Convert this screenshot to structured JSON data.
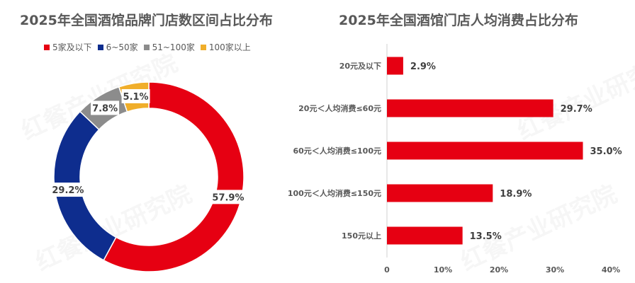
{
  "watermark": "红餐产业研究院",
  "chart_data": [
    {
      "type": "pie",
      "donut": true,
      "title": "2025年全国酒馆品牌门店数区间占比分布",
      "legend_position": "top",
      "categories": [
        "5家及以下",
        "6~50家",
        "51~100家",
        "100家以上"
      ],
      "values": [
        57.9,
        29.2,
        7.8,
        5.1
      ],
      "labels": [
        "57.9%",
        "29.2%",
        "7.8%",
        "5.1%"
      ],
      "colors": [
        "#e60012",
        "#0e2d8e",
        "#8c8c8c",
        "#f0ae2a"
      ]
    },
    {
      "type": "bar",
      "orientation": "horizontal",
      "title": "2025年全国酒馆门店人均消费占比分布",
      "categories": [
        "20元及以下",
        "20元＜人均消费≤60元",
        "60元＜人均消费≤100元",
        "100元＜人均消费≤150元",
        "150元以上"
      ],
      "values": [
        2.9,
        29.7,
        35.0,
        18.9,
        13.5
      ],
      "labels": [
        "2.9%",
        "29.7%",
        "35.0%",
        "18.9%",
        "13.5%"
      ],
      "xlim": [
        0,
        40
      ],
      "xticks": [
        "0",
        "10%",
        "20%",
        "30%",
        "40%"
      ],
      "grid": false,
      "color": "#e60012"
    }
  ]
}
